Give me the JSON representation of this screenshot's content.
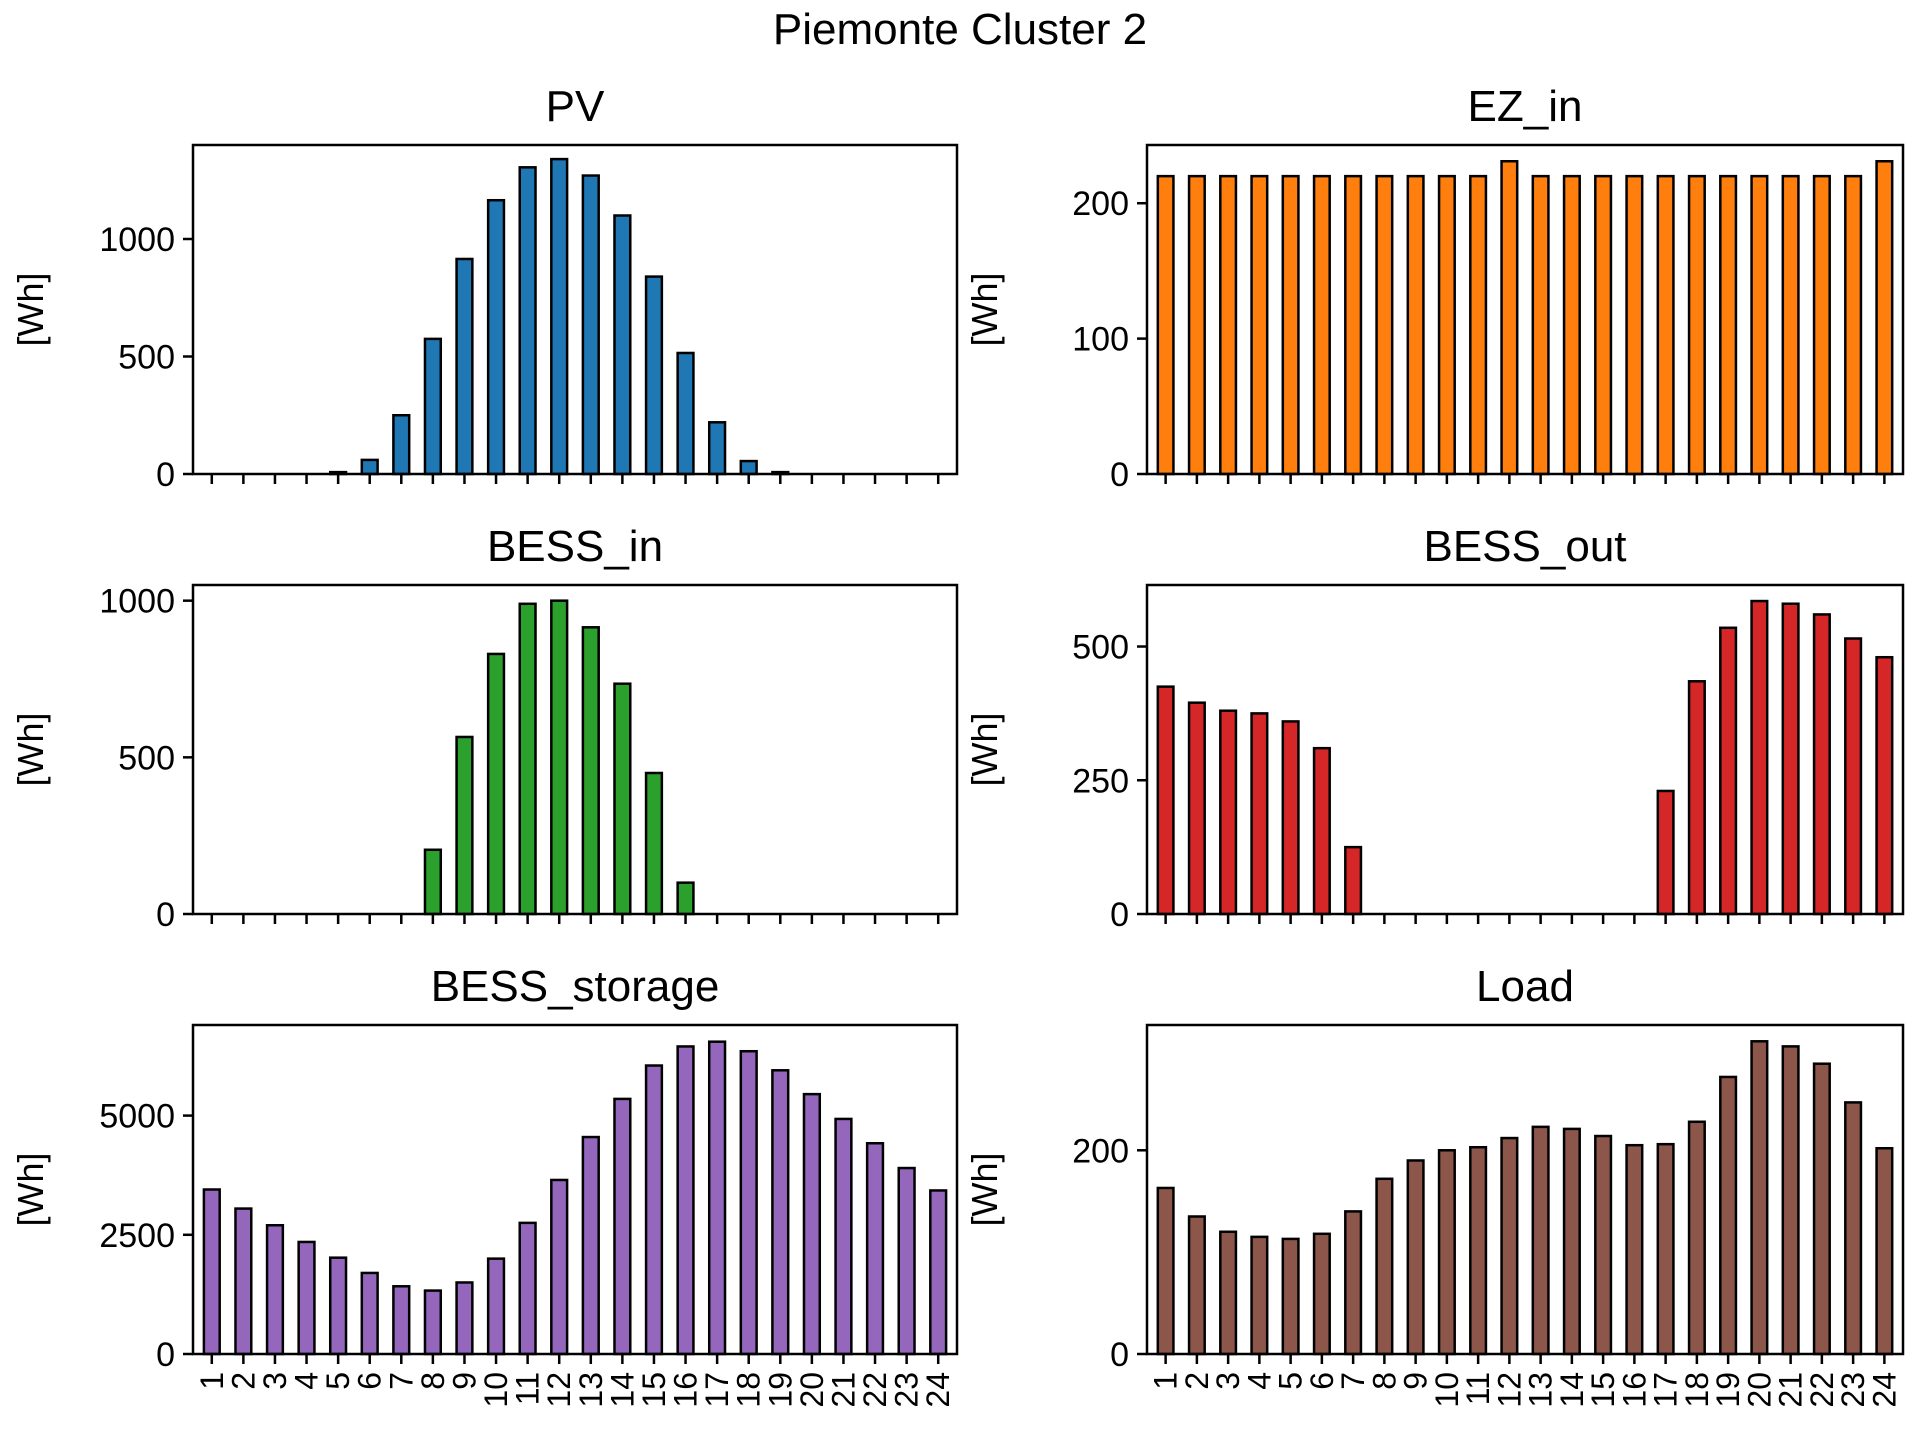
{
  "figure": {
    "suptitle": "Piemonte Cluster 2"
  },
  "chart_data": [
    {
      "type": "bar",
      "title": "PV",
      "ylabel": "[Wh]",
      "color": "#1f77b4",
      "categories": [
        "1",
        "2",
        "3",
        "4",
        "5",
        "6",
        "7",
        "8",
        "9",
        "10",
        "11",
        "12",
        "13",
        "14",
        "15",
        "16",
        "17",
        "18",
        "19",
        "20",
        "21",
        "22",
        "23",
        "24"
      ],
      "values": [
        0,
        0,
        0,
        0,
        8,
        60,
        250,
        575,
        915,
        1165,
        1305,
        1340,
        1270,
        1100,
        840,
        515,
        220,
        55,
        8,
        0,
        0,
        0,
        0,
        0
      ],
      "ylim": [
        0,
        1400
      ],
      "yticks": [
        0,
        500,
        1000
      ],
      "show_xticklabels": false
    },
    {
      "type": "bar",
      "title": "EZ_in",
      "ylabel": "[Wh]",
      "color": "#ff7f0e",
      "categories": [
        "1",
        "2",
        "3",
        "4",
        "5",
        "6",
        "7",
        "8",
        "9",
        "10",
        "11",
        "12",
        "13",
        "14",
        "15",
        "16",
        "17",
        "18",
        "19",
        "20",
        "21",
        "22",
        "23",
        "24"
      ],
      "values": [
        220,
        220,
        220,
        220,
        220,
        220,
        220,
        220,
        220,
        220,
        220,
        231,
        220,
        220,
        220,
        220,
        220,
        220,
        220,
        220,
        220,
        220,
        220,
        231
      ],
      "ylim": [
        0,
        243
      ],
      "yticks": [
        0,
        100,
        200
      ],
      "show_xticklabels": false
    },
    {
      "type": "bar",
      "title": "BESS_in",
      "ylabel": "[Wh]",
      "color": "#2ca02c",
      "categories": [
        "1",
        "2",
        "3",
        "4",
        "5",
        "6",
        "7",
        "8",
        "9",
        "10",
        "11",
        "12",
        "13",
        "14",
        "15",
        "16",
        "17",
        "18",
        "19",
        "20",
        "21",
        "22",
        "23",
        "24"
      ],
      "values": [
        0,
        0,
        0,
        0,
        0,
        0,
        0,
        205,
        565,
        830,
        990,
        1000,
        915,
        735,
        450,
        100,
        0,
        0,
        0,
        0,
        0,
        0,
        0,
        0
      ],
      "ylim": [
        0,
        1050
      ],
      "yticks": [
        0,
        500,
        1000
      ],
      "show_xticklabels": false
    },
    {
      "type": "bar",
      "title": "BESS_out",
      "ylabel": "[Wh]",
      "color": "#d62728",
      "categories": [
        "1",
        "2",
        "3",
        "4",
        "5",
        "6",
        "7",
        "8",
        "9",
        "10",
        "11",
        "12",
        "13",
        "14",
        "15",
        "16",
        "17",
        "18",
        "19",
        "20",
        "21",
        "22",
        "23",
        "24"
      ],
      "values": [
        425,
        395,
        380,
        375,
        360,
        310,
        125,
        0,
        0,
        0,
        0,
        0,
        0,
        0,
        0,
        0,
        230,
        435,
        535,
        585,
        580,
        560,
        515,
        480
      ],
      "ylim": [
        0,
        615
      ],
      "yticks": [
        0,
        250,
        500
      ],
      "show_xticklabels": false
    },
    {
      "type": "bar",
      "title": "BESS_storage",
      "ylabel": "[Wh]",
      "color": "#9467bd",
      "categories": [
        "1",
        "2",
        "3",
        "4",
        "5",
        "6",
        "7",
        "8",
        "9",
        "10",
        "11",
        "12",
        "13",
        "14",
        "15",
        "16",
        "17",
        "18",
        "19",
        "20",
        "21",
        "22",
        "23",
        "24"
      ],
      "values": [
        3450,
        3050,
        2700,
        2350,
        2020,
        1700,
        1420,
        1330,
        1500,
        2000,
        2750,
        3650,
        4550,
        5350,
        6050,
        6450,
        6550,
        6350,
        5950,
        5450,
        4930,
        4420,
        3900,
        3430
      ],
      "ylim": [
        0,
        6900
      ],
      "yticks": [
        0,
        2500,
        5000
      ],
      "show_xticklabels": true
    },
    {
      "type": "bar",
      "title": "Load",
      "ylabel": "[Wh]",
      "color": "#8c564b",
      "categories": [
        "1",
        "2",
        "3",
        "4",
        "5",
        "6",
        "7",
        "8",
        "9",
        "10",
        "11",
        "12",
        "13",
        "14",
        "15",
        "16",
        "17",
        "18",
        "19",
        "20",
        "21",
        "22",
        "23",
        "24"
      ],
      "values": [
        163,
        135,
        120,
        115,
        113,
        118,
        140,
        172,
        190,
        200,
        203,
        212,
        223,
        221,
        214,
        205,
        206,
        228,
        272,
        307,
        302,
        285,
        247,
        202
      ],
      "ylim": [
        0,
        323
      ],
      "yticks": [
        0,
        200
      ],
      "show_xticklabels": true
    }
  ]
}
